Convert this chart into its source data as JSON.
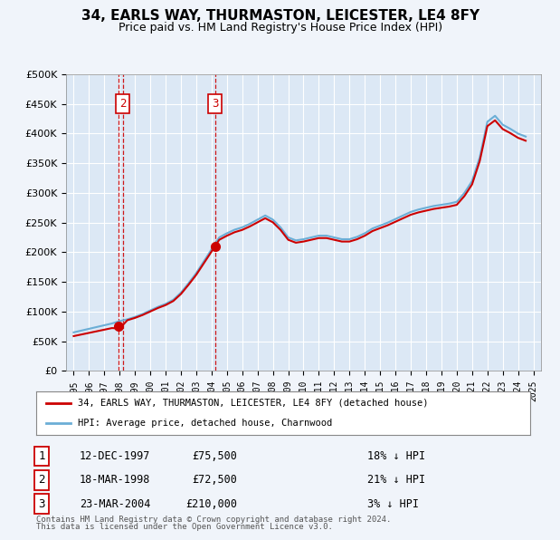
{
  "title": "34, EARLS WAY, THURMASTON, LEICESTER, LE4 8FY",
  "subtitle": "Price paid vs. HM Land Registry's House Price Index (HPI)",
  "bg_color": "#f0f4fa",
  "plot_bg_color": "#dce8f5",
  "grid_color": "#ffffff",
  "legend_label_red": "34, EARLS WAY, THURMASTON, LEICESTER, LE4 8FY (detached house)",
  "legend_label_blue": "HPI: Average price, detached house, Charnwood",
  "footer1": "Contains HM Land Registry data © Crown copyright and database right 2024.",
  "footer2": "This data is licensed under the Open Government Licence v3.0.",
  "transactions": [
    {
      "num": 1,
      "date": "12-DEC-1997",
      "price": "£75,500",
      "hpi": "18% ↓ HPI",
      "year": 1997.95,
      "value": 75500
    },
    {
      "num": 2,
      "date": "18-MAR-1998",
      "price": "£72,500",
      "hpi": "21% ↓ HPI",
      "year": 1998.21,
      "value": 72500
    },
    {
      "num": 3,
      "date": "23-MAR-2004",
      "price": "£210,000",
      "hpi": "3% ↓ HPI",
      "year": 2004.22,
      "value": 210000
    }
  ],
  "hpi_color": "#6baed6",
  "price_color": "#cc0000",
  "marker_color": "#cc0000",
  "vline_color": "#cc0000",
  "ylim": [
    0,
    500000
  ],
  "yticks": [
    0,
    50000,
    100000,
    150000,
    200000,
    250000,
    300000,
    350000,
    400000,
    450000,
    500000
  ],
  "xlim_left": 1994.5,
  "xlim_right": 2025.5,
  "xticks": [
    1995,
    1996,
    1997,
    1998,
    1999,
    2000,
    2001,
    2002,
    2003,
    2004,
    2005,
    2006,
    2007,
    2008,
    2009,
    2010,
    2011,
    2012,
    2013,
    2014,
    2015,
    2016,
    2017,
    2018,
    2019,
    2020,
    2021,
    2022,
    2023,
    2024,
    2025
  ]
}
